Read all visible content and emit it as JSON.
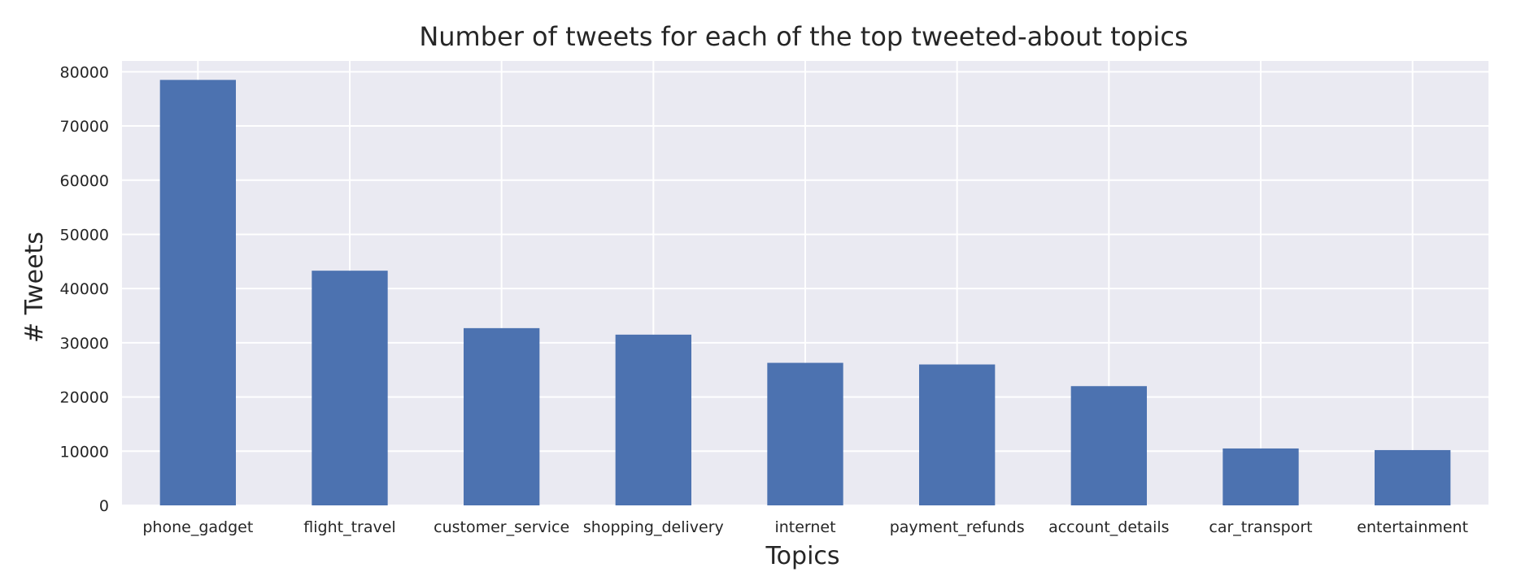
{
  "chart_data": {
    "type": "bar",
    "title": "Number of tweets for each of the top tweeted-about topics",
    "xlabel": "Topics",
    "ylabel": "# Tweets",
    "categories": [
      "phone_gadget",
      "flight_travel",
      "customer_service",
      "shopping_delivery",
      "internet",
      "payment_refunds",
      "account_details",
      "car_transport",
      "entertainment"
    ],
    "values": [
      78500,
      43300,
      32700,
      31500,
      26300,
      26000,
      22000,
      10500,
      10200
    ],
    "ylim": [
      0,
      82000
    ],
    "yticks": [
      0,
      10000,
      20000,
      30000,
      40000,
      50000,
      60000,
      70000,
      80000
    ],
    "grid": true,
    "legend": "none"
  },
  "colors": {
    "plot_background": "#EAEAF2",
    "grid": "#FFFFFF",
    "bar": "#4C72B0",
    "text": "#262626"
  }
}
